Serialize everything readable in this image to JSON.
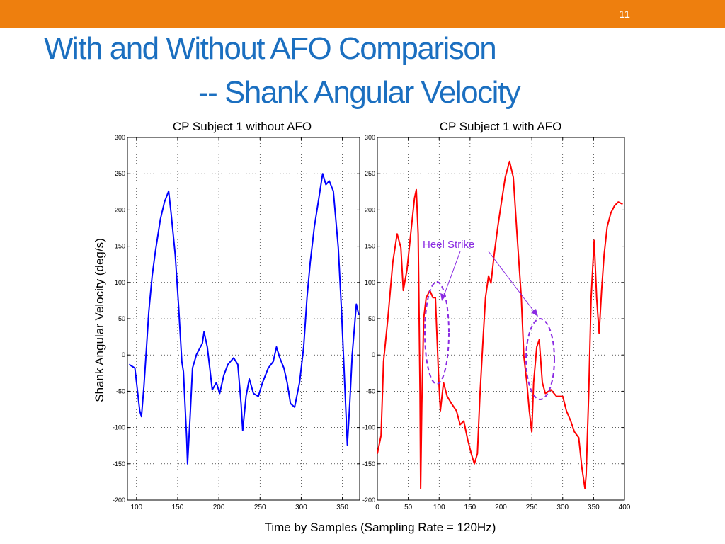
{
  "slide": {
    "number": "11",
    "title_line1": "With and Without AFO Comparison",
    "title_line2": "-- Shank Angular Velocity",
    "header_color": "#EE7F0E",
    "title_color": "#1B6FC0"
  },
  "chart_data": [
    {
      "type": "line",
      "title": "CP Subject 1 without AFO",
      "xlabel": "Time by Samples (Sampling Rate = 120Hz)",
      "ylabel": "Shank Angular Velocity (deg/s)",
      "xlim": [
        89,
        371
      ],
      "ylim": [
        -200,
        300
      ],
      "xticks": [
        100,
        150,
        200,
        250,
        300,
        350
      ],
      "yticks": [
        300,
        250,
        200,
        150,
        100,
        50,
        0,
        -50,
        -100,
        -150,
        -200
      ],
      "grid": true,
      "series": [
        {
          "name": "without AFO",
          "color": "#0000FF",
          "x": [
            91,
            98,
            104,
            106,
            109,
            111,
            115,
            119,
            123,
            129,
            134,
            139,
            142,
            147,
            151,
            155,
            157,
            161,
            162,
            165,
            168,
            173,
            180,
            182,
            186,
            189,
            192,
            197,
            201,
            206,
            211,
            218,
            223,
            227,
            229,
            233,
            237,
            242,
            248,
            253,
            260,
            266,
            270,
            274,
            279,
            283,
            287,
            292,
            298,
            303,
            307,
            311,
            316,
            320,
            326,
            330,
            334,
            339,
            345,
            349,
            352,
            356,
            359,
            362,
            367,
            370
          ],
          "y": [
            -13,
            -18,
            -77,
            -85,
            -43,
            -9,
            60,
            109,
            143,
            187,
            211,
            226,
            196,
            138,
            70,
            -9,
            -23,
            -116,
            -150,
            -87,
            -18,
            1,
            16,
            32,
            11,
            -18,
            -48,
            -38,
            -53,
            -28,
            -13,
            -4,
            -13,
            -67,
            -104,
            -57,
            -33,
            -53,
            -57,
            -38,
            -18,
            -9,
            11,
            -4,
            -18,
            -38,
            -67,
            -72,
            -38,
            11,
            79,
            128,
            177,
            206,
            250,
            235,
            240,
            226,
            148,
            60,
            -18,
            -124,
            -67,
            1,
            70,
            55
          ]
        }
      ]
    },
    {
      "type": "line",
      "title": "CP Subject 1 with AFO",
      "xlabel": "Time by Samples (Sampling Rate = 120Hz)",
      "xlim": [
        0,
        400
      ],
      "ylim": [
        -200,
        300
      ],
      "xticks": [
        0,
        50,
        100,
        150,
        200,
        250,
        300,
        350,
        400
      ],
      "yticks": [
        300,
        250,
        200,
        150,
        100,
        50,
        0,
        -50,
        -100,
        -150,
        -200
      ],
      "grid": true,
      "annotation": "Heel Strike",
      "annotation_color": "#8A2BE2",
      "series": [
        {
          "name": "with AFO",
          "color": "#FF0000",
          "x": [
            0,
            6,
            10,
            17,
            25,
            32,
            38,
            42,
            48,
            54,
            60,
            63,
            66,
            69,
            70,
            72,
            75,
            79,
            85,
            90,
            94,
            99,
            102,
            107,
            113,
            120,
            128,
            134,
            140,
            146,
            152,
            157,
            162,
            166,
            171,
            175,
            180,
            184,
            189,
            195,
            200,
            207,
            214,
            220,
            226,
            233,
            237,
            242,
            246,
            250,
            253,
            258,
            262,
            267,
            272,
            281,
            290,
            300,
            306,
            313,
            319,
            326,
            331,
            336,
            338,
            342,
            346,
            351,
            355,
            359,
            363,
            367,
            372,
            378,
            384,
            390,
            397
          ],
          "y": [
            -136,
            -111,
            -9,
            50,
            128,
            167,
            148,
            89,
            118,
            167,
            216,
            228,
            167,
            -48,
            -184,
            -67,
            50,
            79,
            89,
            79,
            79,
            -28,
            -77,
            -38,
            -57,
            -67,
            -77,
            -96,
            -91,
            -116,
            -136,
            -150,
            -136,
            -57,
            21,
            79,
            109,
            99,
            138,
            177,
            206,
            245,
            267,
            245,
            167,
            79,
            -1,
            -38,
            -77,
            -106,
            -38,
            11,
            21,
            -38,
            -53,
            -48,
            -57,
            -57,
            -77,
            -91,
            -106,
            -114,
            -155,
            -184,
            -165,
            -57,
            79,
            158,
            79,
            30,
            89,
            138,
            177,
            196,
            206,
            211,
            208
          ]
        }
      ]
    }
  ]
}
